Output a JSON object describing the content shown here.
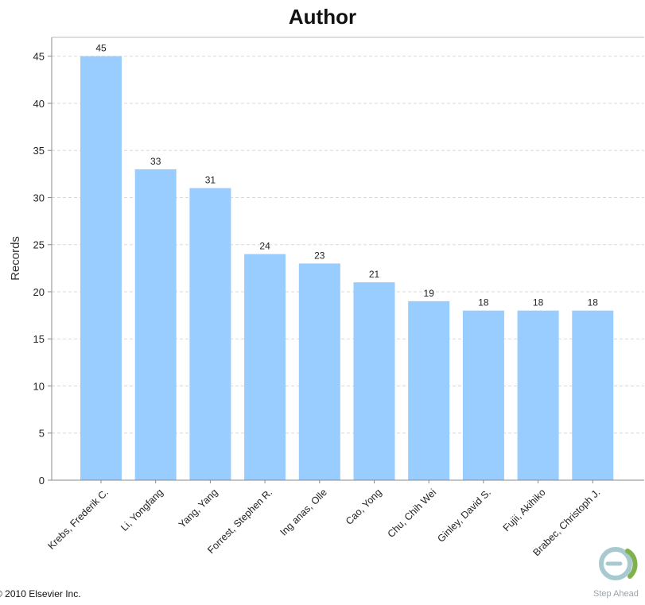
{
  "chart_data": {
    "type": "bar",
    "title": "Author",
    "xlabel": "",
    "ylabel": "Records",
    "ylim": [
      0,
      47
    ],
    "yticks": [
      0,
      5,
      10,
      15,
      20,
      25,
      30,
      35,
      40,
      45
    ],
    "grid": true,
    "bar_color": "#99ccff",
    "grid_color": "#d8d8d8",
    "categories": [
      "Krebs, Frederik C.",
      "Li, Yongfang",
      "Yang, Yang",
      "Forrest, Stephen R.",
      "Ing anas, Olle",
      "Cao, Yong",
      "Chu, Chih Wei",
      "Ginley, David S.",
      "Fujii, Akihiko",
      "Brabec, Christoph J."
    ],
    "values": [
      45,
      33,
      31,
      24,
      23,
      21,
      19,
      18,
      18,
      18
    ]
  },
  "footer": {
    "copyright": "© 2010 Elsevier Inc.",
    "logo_text": "Step Ahead",
    "logo_icon": "elsevier-e-logo-icon",
    "logo_colors": [
      "#a8c9cf",
      "#7fb24a"
    ]
  }
}
